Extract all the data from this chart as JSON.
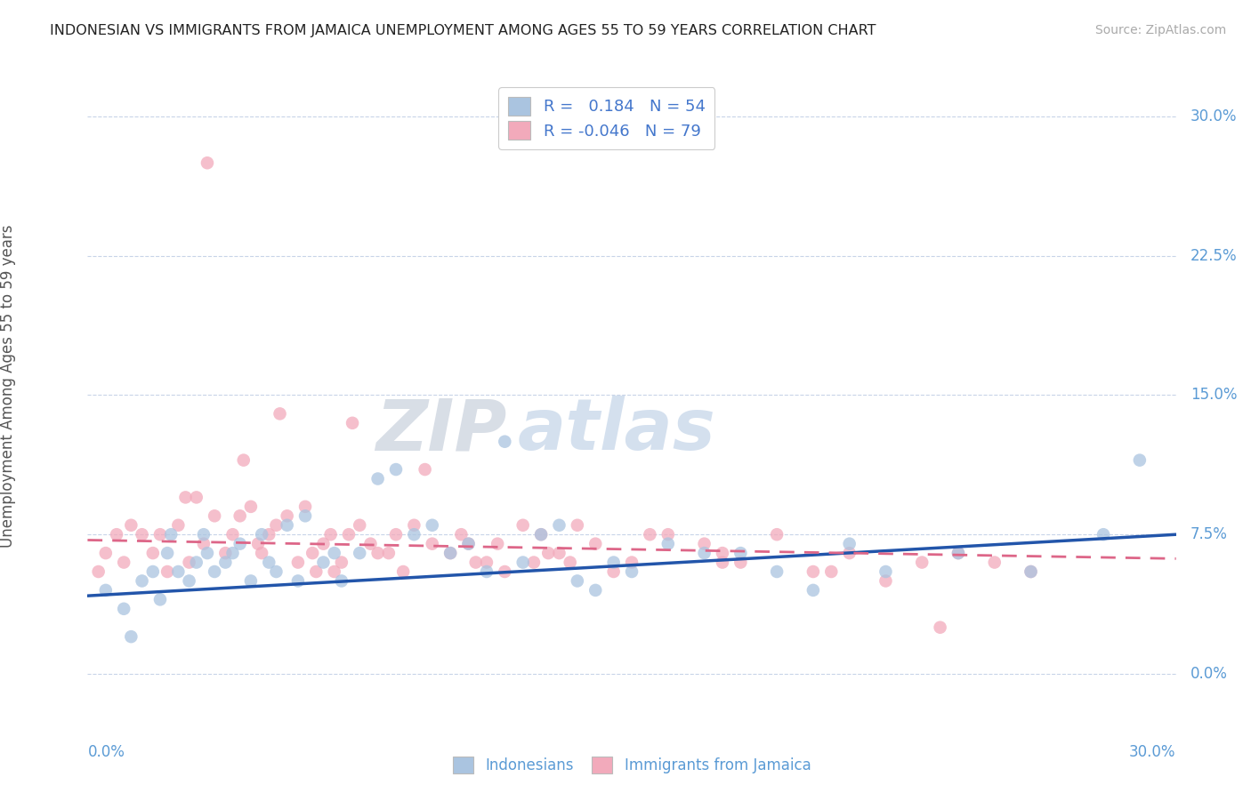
{
  "title": "INDONESIAN VS IMMIGRANTS FROM JAMAICA UNEMPLOYMENT AMONG AGES 55 TO 59 YEARS CORRELATION CHART",
  "source": "Source: ZipAtlas.com",
  "ylabel": "Unemployment Among Ages 55 to 59 years",
  "ytick_labels": [
    "0.0%",
    "7.5%",
    "15.0%",
    "22.5%",
    "30.0%"
  ],
  "ytick_values": [
    0.0,
    7.5,
    15.0,
    22.5,
    30.0
  ],
  "xmin": 0.0,
  "xmax": 30.0,
  "ymin": -3.0,
  "ymax": 32.0,
  "blue_R": 0.184,
  "blue_N": 54,
  "pink_R": -0.046,
  "pink_N": 79,
  "blue_color": "#aac4e0",
  "pink_color": "#f2aabb",
  "blue_line_color": "#2255aa",
  "pink_line_color": "#dd6688",
  "watermark_zip": "ZIP",
  "watermark_atlas": "atlas",
  "bg_color": "#ffffff",
  "grid_color": "#c8d4e8",
  "blue_scatter_x": [
    0.5,
    1.0,
    1.2,
    1.5,
    1.8,
    2.0,
    2.2,
    2.5,
    2.8,
    3.0,
    3.2,
    3.5,
    3.8,
    4.0,
    4.2,
    4.5,
    4.8,
    5.0,
    5.2,
    5.5,
    5.8,
    6.0,
    6.5,
    6.8,
    7.0,
    7.5,
    8.0,
    8.5,
    9.0,
    9.5,
    10.0,
    10.5,
    11.0,
    11.5,
    12.0,
    12.5,
    13.0,
    13.5,
    14.0,
    14.5,
    15.0,
    16.0,
    17.0,
    18.0,
    19.0,
    20.0,
    21.0,
    22.0,
    24.0,
    26.0,
    28.0,
    29.0,
    2.3,
    3.3
  ],
  "blue_scatter_y": [
    4.5,
    3.5,
    2.0,
    5.0,
    5.5,
    4.0,
    6.5,
    5.5,
    5.0,
    6.0,
    7.5,
    5.5,
    6.0,
    6.5,
    7.0,
    5.0,
    7.5,
    6.0,
    5.5,
    8.0,
    5.0,
    8.5,
    6.0,
    6.5,
    5.0,
    6.5,
    10.5,
    11.0,
    7.5,
    8.0,
    6.5,
    7.0,
    5.5,
    12.5,
    6.0,
    7.5,
    8.0,
    5.0,
    4.5,
    6.0,
    5.5,
    7.0,
    6.5,
    6.5,
    5.5,
    4.5,
    7.0,
    5.5,
    6.5,
    5.5,
    7.5,
    11.5,
    7.5,
    6.5
  ],
  "pink_scatter_x": [
    0.3,
    0.5,
    0.8,
    1.0,
    1.2,
    1.5,
    1.8,
    2.0,
    2.2,
    2.5,
    2.8,
    3.0,
    3.2,
    3.5,
    3.8,
    4.0,
    4.2,
    4.5,
    4.8,
    5.0,
    5.2,
    5.5,
    5.8,
    6.0,
    6.2,
    6.5,
    6.8,
    7.0,
    7.2,
    7.5,
    7.8,
    8.0,
    8.5,
    9.0,
    9.5,
    10.0,
    10.5,
    11.0,
    11.5,
    12.0,
    12.5,
    13.0,
    13.5,
    14.0,
    14.5,
    15.0,
    16.0,
    17.0,
    17.5,
    18.0,
    19.0,
    20.0,
    21.0,
    22.0,
    23.0,
    24.0,
    25.0,
    26.0,
    3.3,
    5.3,
    7.3,
    9.3,
    11.3,
    13.3,
    4.3,
    6.3,
    8.3,
    10.3,
    12.3,
    2.7,
    4.7,
    6.7,
    8.7,
    10.7,
    12.7,
    15.5,
    17.5,
    20.5,
    23.5
  ],
  "pink_scatter_y": [
    5.5,
    6.5,
    7.5,
    6.0,
    8.0,
    7.5,
    6.5,
    7.5,
    5.5,
    8.0,
    6.0,
    9.5,
    7.0,
    8.5,
    6.5,
    7.5,
    8.5,
    9.0,
    6.5,
    7.5,
    8.0,
    8.5,
    6.0,
    9.0,
    6.5,
    7.0,
    5.5,
    6.0,
    7.5,
    8.0,
    7.0,
    6.5,
    7.5,
    8.0,
    7.0,
    6.5,
    7.0,
    6.0,
    5.5,
    8.0,
    7.5,
    6.5,
    8.0,
    7.0,
    5.5,
    6.0,
    7.5,
    7.0,
    6.5,
    6.0,
    7.5,
    5.5,
    6.5,
    5.0,
    6.0,
    6.5,
    6.0,
    5.5,
    27.5,
    14.0,
    13.5,
    11.0,
    7.0,
    6.0,
    11.5,
    5.5,
    6.5,
    7.5,
    6.0,
    9.5,
    7.0,
    7.5,
    5.5,
    6.0,
    6.5,
    7.5,
    6.0,
    5.5,
    2.5
  ],
  "blue_trend_x0": 0.0,
  "blue_trend_x1": 30.0,
  "blue_trend_y0": 4.2,
  "blue_trend_y1": 7.5,
  "pink_trend_x0": 0.0,
  "pink_trend_x1": 30.0,
  "pink_trend_y0": 7.2,
  "pink_trend_y1": 6.2
}
